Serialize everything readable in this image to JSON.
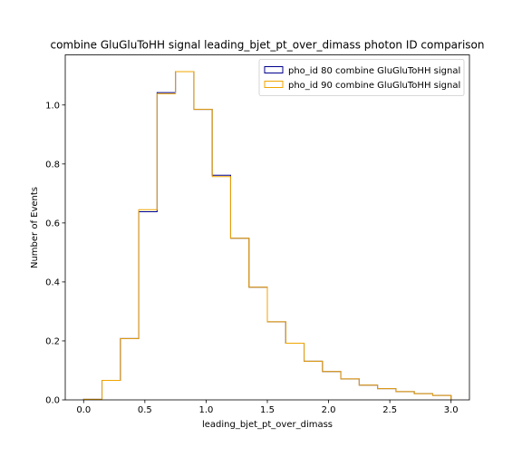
{
  "chart_data": {
    "type": "histogram-step",
    "title": "combine GluGluToHH signal leading_bjet_pt_over_dimass photon ID comparison",
    "xlabel": "leading_bjet_pt_over_dimass",
    "ylabel": "Number of Events",
    "xlim": [
      -0.15,
      3.15
    ],
    "ylim": [
      0,
      1.17
    ],
    "xticks": [
      0.0,
      0.5,
      1.0,
      1.5,
      2.0,
      2.5,
      3.0
    ],
    "xtick_labels": [
      "0.0",
      "0.5",
      "1.0",
      "1.5",
      "2.0",
      "2.5",
      "3.0"
    ],
    "yticks": [
      0.0,
      0.2,
      0.4,
      0.6,
      0.8,
      1.0
    ],
    "ytick_labels": [
      "0.0",
      "0.2",
      "0.4",
      "0.6",
      "0.8",
      "1.0"
    ],
    "bin_edges": [
      0.0,
      0.15,
      0.3,
      0.45,
      0.6,
      0.75,
      0.9,
      1.05,
      1.2,
      1.35,
      1.5,
      1.65,
      1.8,
      1.95,
      2.1,
      2.25,
      2.4,
      2.55,
      2.7,
      2.85,
      3.0
    ],
    "legend_position": "upper right",
    "series": [
      {
        "name": "pho_id 80 combine GluGluToHH signal",
        "color": "#00008b",
        "values": [
          0.002,
          0.066,
          0.208,
          0.638,
          1.042,
          1.113,
          0.985,
          0.762,
          0.548,
          0.382,
          0.265,
          0.192,
          0.131,
          0.096,
          0.071,
          0.05,
          0.038,
          0.028,
          0.021,
          0.015
        ]
      },
      {
        "name": "pho_id 90 combine GluGluToHH signal",
        "color": "#f0a500",
        "values": [
          0.002,
          0.066,
          0.208,
          0.645,
          1.038,
          1.113,
          0.985,
          0.757,
          0.548,
          0.382,
          0.265,
          0.192,
          0.131,
          0.096,
          0.071,
          0.05,
          0.038,
          0.028,
          0.021,
          0.015
        ]
      }
    ]
  }
}
